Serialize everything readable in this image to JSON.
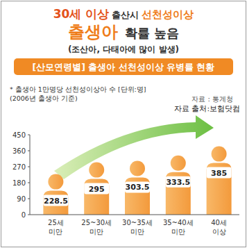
{
  "chart_data": {
    "type": "bar",
    "title": [
      [
        "30세 이상",
        "출산시",
        "선천성이상"
      ],
      [
        "출생아",
        "확률 높음"
      ]
    ],
    "subtitle": "(조산아, 다태아에 많이 발생)",
    "annotations": [
      "[산모연령별] 출생아 선천성이상 유병률 현황",
      "* 출생아 1만명당 선천성이상아 수 [단위:명]",
      "(2006년 출생아 기준)",
      "자료 : 통계청",
      "자료 출처:보험닷컴"
    ],
    "categories": [
      "25세\n미만",
      "25~30세\n미만",
      "30~35세\n미만",
      "35~40세\n미만",
      "40세\n이상"
    ],
    "values": [
      228.5,
      295,
      303.5,
      333.5,
      385
    ],
    "color": "#f39a3c",
    "ylim": [
      0,
      450
    ],
    "yticks": [
      0,
      90,
      180,
      270,
      360,
      450
    ],
    "grid": false,
    "data_labels": true
  }
}
